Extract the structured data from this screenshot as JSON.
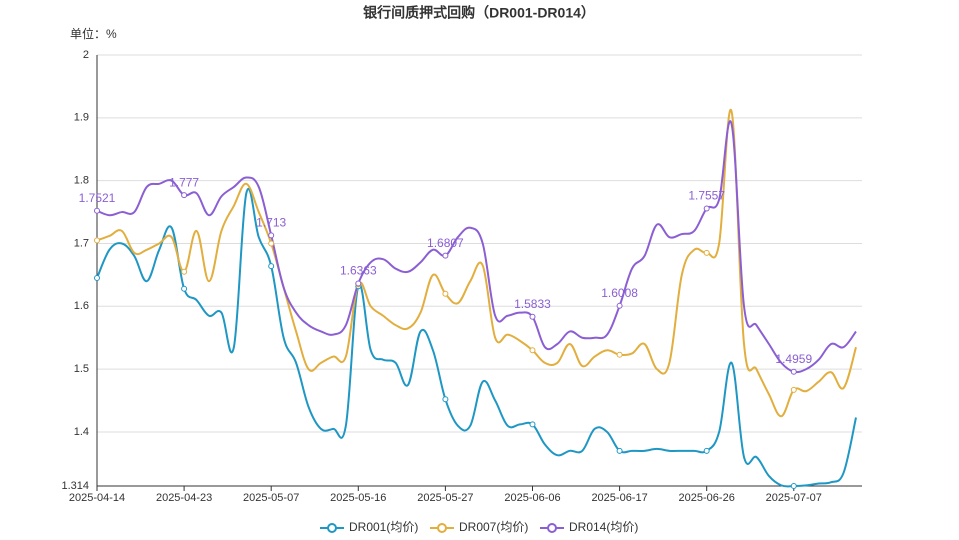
{
  "chart_data": {
    "type": "line",
    "title": "银行间质押式回购（DR001-DR014）",
    "y_label": "单位：%",
    "categories": [
      "2025-04-14",
      null,
      null,
      null,
      null,
      null,
      null,
      "2025-04-23",
      null,
      null,
      null,
      null,
      null,
      null,
      "2025-05-07",
      null,
      null,
      null,
      null,
      null,
      null,
      "2025-05-16",
      null,
      null,
      null,
      null,
      null,
      null,
      "2025-05-27",
      null,
      null,
      null,
      null,
      null,
      null,
      "2025-06-06",
      null,
      null,
      null,
      null,
      null,
      null,
      "2025-06-17",
      null,
      null,
      null,
      null,
      null,
      null,
      "2025-06-26",
      null,
      null,
      null,
      null,
      null,
      null,
      "2025-07-07",
      null,
      null,
      null,
      null,
      null
    ],
    "series": [
      {
        "name": "DR001(均价)",
        "color": "#1f97c4",
        "values": [
          1.645,
          1.69,
          1.7,
          1.68,
          1.64,
          1.69,
          1.725,
          1.628,
          1.61,
          1.585,
          1.59,
          1.535,
          1.78,
          1.71,
          1.664,
          1.55,
          1.51,
          1.44,
          1.405,
          1.405,
          1.41,
          1.632,
          1.53,
          1.515,
          1.51,
          1.475,
          1.56,
          1.53,
          1.452,
          1.41,
          1.41,
          1.48,
          1.45,
          1.41,
          1.412,
          1.412,
          1.38,
          1.363,
          1.37,
          1.37,
          1.405,
          1.4,
          1.37,
          1.37,
          1.37,
          1.373,
          1.37,
          1.37,
          1.37,
          1.37,
          1.4,
          1.51,
          1.36,
          1.36,
          1.33,
          1.315,
          1.314,
          1.315,
          1.318,
          1.32,
          1.335,
          1.423
        ]
      },
      {
        "name": "DR007(均价)",
        "color": "#e2ae3e",
        "values": [
          1.705,
          1.712,
          1.72,
          1.685,
          1.69,
          1.7,
          1.71,
          1.655,
          1.72,
          1.64,
          1.72,
          1.76,
          1.795,
          1.75,
          1.7,
          1.63,
          1.56,
          1.5,
          1.51,
          1.52,
          1.52,
          1.635,
          1.6,
          1.585,
          1.57,
          1.565,
          1.59,
          1.65,
          1.62,
          1.605,
          1.64,
          1.665,
          1.55,
          1.555,
          1.545,
          1.53,
          1.51,
          1.51,
          1.54,
          1.505,
          1.52,
          1.53,
          1.523,
          1.525,
          1.54,
          1.5,
          1.51,
          1.65,
          1.69,
          1.685,
          1.7,
          1.91,
          1.54,
          1.5,
          1.46,
          1.425,
          1.467,
          1.465,
          1.48,
          1.495,
          1.47,
          1.535
        ]
      },
      {
        "name": "DR014(均价)",
        "color": "#8b5fd3",
        "labels": true,
        "values": [
          1.7521,
          1.745,
          1.75,
          1.75,
          1.79,
          1.795,
          1.8,
          1.777,
          1.78,
          1.745,
          1.775,
          1.79,
          1.805,
          1.79,
          1.713,
          1.63,
          1.59,
          1.57,
          1.56,
          1.555,
          1.57,
          1.6363,
          1.67,
          1.675,
          1.66,
          1.655,
          1.67,
          1.69,
          1.6807,
          1.71,
          1.725,
          1.7,
          1.585,
          1.585,
          1.59,
          1.5833,
          1.535,
          1.54,
          1.56,
          1.55,
          1.55,
          1.555,
          1.6008,
          1.66,
          1.68,
          1.73,
          1.71,
          1.715,
          1.72,
          1.7557,
          1.77,
          1.89,
          1.6,
          1.57,
          1.54,
          1.51,
          1.4959,
          1.5,
          1.515,
          1.54,
          1.535,
          1.56
        ]
      }
    ],
    "ylim": [
      1.314,
      2
    ],
    "yticks": [
      1.314,
      1.4,
      1.5,
      1.6,
      1.7,
      1.8,
      1.9,
      2
    ],
    "grid": true
  }
}
